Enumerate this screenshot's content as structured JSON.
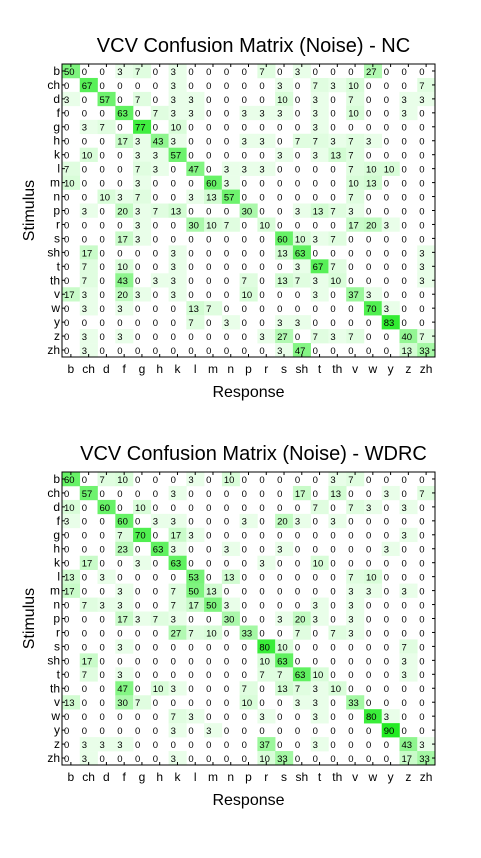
{
  "chart_data": [
    {
      "type": "heatmap",
      "title": "VCV Confusion Matrix (Noise) - NC",
      "xlabel": "Response",
      "ylabel": "Stimulus",
      "categories": [
        "b",
        "ch",
        "d",
        "f",
        "g",
        "h",
        "k",
        "l",
        "m",
        "n",
        "p",
        "r",
        "s",
        "sh",
        "t",
        "th",
        "v",
        "w",
        "y",
        "z",
        "zh"
      ],
      "values": [
        [
          50,
          0,
          0,
          3,
          7,
          0,
          3,
          0,
          0,
          0,
          0,
          7,
          0,
          3,
          0,
          0,
          0,
          27,
          0,
          0,
          0
        ],
        [
          0,
          67,
          0,
          0,
          0,
          0,
          3,
          0,
          0,
          0,
          0,
          0,
          3,
          0,
          7,
          3,
          10,
          0,
          0,
          0,
          7
        ],
        [
          3,
          0,
          57,
          0,
          7,
          0,
          3,
          3,
          0,
          0,
          0,
          0,
          10,
          0,
          3,
          0,
          7,
          0,
          0,
          3,
          3
        ],
        [
          0,
          0,
          0,
          63,
          0,
          7,
          3,
          3,
          0,
          0,
          3,
          3,
          3,
          0,
          3,
          0,
          10,
          0,
          0,
          3,
          0
        ],
        [
          0,
          3,
          7,
          0,
          77,
          0,
          10,
          0,
          0,
          0,
          0,
          0,
          0,
          0,
          3,
          0,
          0,
          0,
          0,
          0,
          0
        ],
        [
          0,
          0,
          0,
          17,
          3,
          43,
          3,
          0,
          0,
          0,
          3,
          3,
          0,
          7,
          7,
          3,
          7,
          3,
          0,
          0,
          0
        ],
        [
          0,
          10,
          0,
          0,
          3,
          3,
          57,
          0,
          0,
          0,
          0,
          0,
          3,
          0,
          3,
          13,
          7,
          0,
          0,
          0,
          0
        ],
        [
          7,
          0,
          0,
          0,
          7,
          3,
          0,
          47,
          0,
          3,
          3,
          3,
          0,
          0,
          0,
          0,
          7,
          10,
          10,
          0,
          0
        ],
        [
          10,
          0,
          0,
          0,
          3,
          0,
          0,
          0,
          60,
          3,
          0,
          0,
          0,
          0,
          0,
          0,
          10,
          13,
          0,
          0,
          0
        ],
        [
          0,
          0,
          10,
          3,
          7,
          0,
          0,
          3,
          13,
          57,
          0,
          0,
          0,
          0,
          0,
          0,
          7,
          0,
          0,
          0,
          0
        ],
        [
          0,
          3,
          0,
          20,
          3,
          7,
          13,
          0,
          0,
          0,
          30,
          0,
          0,
          3,
          13,
          7,
          3,
          0,
          0,
          0,
          0
        ],
        [
          0,
          0,
          0,
          0,
          3,
          0,
          0,
          30,
          10,
          7,
          0,
          10,
          0,
          0,
          0,
          0,
          17,
          20,
          3,
          0,
          0
        ],
        [
          0,
          0,
          0,
          17,
          3,
          0,
          0,
          0,
          0,
          0,
          0,
          0,
          60,
          10,
          3,
          7,
          0,
          0,
          0,
          0,
          0
        ],
        [
          0,
          17,
          0,
          0,
          0,
          0,
          3,
          0,
          0,
          0,
          0,
          0,
          13,
          63,
          0,
          0,
          0,
          0,
          0,
          0,
          3
        ],
        [
          0,
          7,
          0,
          10,
          0,
          0,
          3,
          0,
          0,
          0,
          0,
          0,
          0,
          3,
          67,
          7,
          0,
          0,
          0,
          0,
          3
        ],
        [
          0,
          7,
          0,
          43,
          0,
          3,
          3,
          0,
          0,
          0,
          7,
          0,
          13,
          7,
          3,
          10,
          0,
          0,
          0,
          0,
          3
        ],
        [
          17,
          3,
          0,
          20,
          3,
          0,
          3,
          0,
          0,
          0,
          10,
          0,
          0,
          0,
          3,
          0,
          37,
          3,
          0,
          0,
          0
        ],
        [
          0,
          3,
          0,
          3,
          0,
          0,
          0,
          13,
          7,
          0,
          0,
          0,
          0,
          0,
          0,
          0,
          0,
          70,
          3,
          0,
          0
        ],
        [
          0,
          0,
          0,
          0,
          0,
          0,
          0,
          7,
          0,
          3,
          0,
          0,
          3,
          3,
          0,
          0,
          0,
          0,
          83,
          0,
          0
        ],
        [
          0,
          3,
          0,
          3,
          0,
          0,
          0,
          0,
          0,
          0,
          0,
          3,
          27,
          0,
          7,
          3,
          7,
          0,
          0,
          40,
          7
        ],
        [
          0,
          3,
          0,
          0,
          0,
          0,
          0,
          0,
          0,
          0,
          0,
          0,
          3,
          47,
          0,
          0,
          0,
          0,
          0,
          13,
          33
        ]
      ]
    },
    {
      "type": "heatmap",
      "title": "VCV Confusion Matrix (Noise) - WDRC",
      "xlabel": "Response",
      "ylabel": "Stimulus",
      "categories": [
        "b",
        "ch",
        "d",
        "f",
        "g",
        "h",
        "k",
        "l",
        "m",
        "n",
        "p",
        "r",
        "s",
        "sh",
        "t",
        "th",
        "v",
        "w",
        "y",
        "z",
        "zh"
      ],
      "values": [
        [
          60,
          0,
          7,
          10,
          0,
          0,
          0,
          3,
          0,
          10,
          0,
          0,
          0,
          0,
          0,
          3,
          7,
          0,
          0,
          0,
          0
        ],
        [
          0,
          57,
          0,
          0,
          0,
          0,
          3,
          0,
          0,
          0,
          0,
          0,
          0,
          17,
          0,
          13,
          0,
          0,
          3,
          0,
          7
        ],
        [
          10,
          0,
          60,
          0,
          10,
          0,
          0,
          0,
          0,
          0,
          0,
          0,
          0,
          0,
          7,
          0,
          7,
          3,
          0,
          3,
          0
        ],
        [
          3,
          0,
          0,
          60,
          0,
          3,
          3,
          0,
          0,
          0,
          3,
          0,
          20,
          3,
          0,
          3,
          0,
          0,
          0,
          0,
          0
        ],
        [
          0,
          0,
          0,
          7,
          70,
          0,
          17,
          3,
          0,
          0,
          0,
          0,
          0,
          0,
          0,
          0,
          0,
          0,
          0,
          3,
          0
        ],
        [
          0,
          0,
          0,
          23,
          0,
          63,
          3,
          0,
          0,
          3,
          0,
          0,
          3,
          0,
          0,
          0,
          0,
          0,
          3,
          0,
          0
        ],
        [
          0,
          17,
          0,
          0,
          3,
          0,
          63,
          0,
          0,
          0,
          0,
          3,
          0,
          0,
          10,
          0,
          0,
          0,
          0,
          0,
          0
        ],
        [
          13,
          0,
          3,
          0,
          0,
          0,
          0,
          53,
          0,
          13,
          0,
          0,
          0,
          0,
          0,
          0,
          7,
          10,
          0,
          0,
          0
        ],
        [
          17,
          0,
          0,
          3,
          0,
          0,
          7,
          50,
          13,
          0,
          0,
          0,
          0,
          0,
          0,
          0,
          3,
          3,
          0,
          3,
          0
        ],
        [
          0,
          7,
          3,
          3,
          0,
          0,
          7,
          17,
          50,
          3,
          0,
          0,
          0,
          0,
          3,
          0,
          3,
          0,
          0,
          0,
          0
        ],
        [
          0,
          0,
          0,
          17,
          3,
          7,
          3,
          0,
          0,
          30,
          0,
          0,
          3,
          20,
          3,
          0,
          3,
          0,
          0,
          0,
          0
        ],
        [
          0,
          0,
          0,
          0,
          0,
          0,
          27,
          7,
          10,
          0,
          33,
          0,
          0,
          7,
          0,
          7,
          3,
          0,
          0,
          0,
          0
        ],
        [
          0,
          0,
          0,
          3,
          0,
          0,
          0,
          0,
          0,
          0,
          0,
          80,
          10,
          0,
          0,
          0,
          0,
          0,
          0,
          7,
          0
        ],
        [
          0,
          17,
          0,
          0,
          0,
          0,
          0,
          0,
          0,
          0,
          0,
          10,
          63,
          0,
          0,
          0,
          0,
          0,
          0,
          3,
          0
        ],
        [
          0,
          7,
          0,
          3,
          0,
          0,
          0,
          0,
          0,
          0,
          0,
          7,
          7,
          63,
          10,
          0,
          0,
          0,
          0,
          3,
          0
        ],
        [
          0,
          0,
          0,
          47,
          0,
          10,
          3,
          0,
          0,
          0,
          7,
          0,
          13,
          7,
          3,
          10,
          0,
          0,
          0,
          0,
          0
        ],
        [
          13,
          0,
          0,
          30,
          7,
          0,
          0,
          0,
          0,
          0,
          10,
          0,
          0,
          3,
          3,
          0,
          33,
          0,
          0,
          0,
          0
        ],
        [
          0,
          0,
          0,
          0,
          0,
          0,
          7,
          3,
          0,
          0,
          0,
          3,
          0,
          0,
          3,
          0,
          0,
          80,
          3,
          0,
          0
        ],
        [
          0,
          0,
          0,
          0,
          0,
          0,
          3,
          0,
          3,
          0,
          0,
          0,
          0,
          0,
          0,
          0,
          0,
          0,
          90,
          0,
          0
        ],
        [
          0,
          3,
          3,
          3,
          0,
          0,
          0,
          0,
          0,
          0,
          0,
          37,
          0,
          0,
          3,
          0,
          0,
          0,
          0,
          43,
          3
        ],
        [
          0,
          3,
          0,
          0,
          0,
          0,
          3,
          0,
          0,
          0,
          0,
          10,
          33,
          0,
          0,
          0,
          0,
          0,
          0,
          17,
          33
        ]
      ]
    }
  ]
}
